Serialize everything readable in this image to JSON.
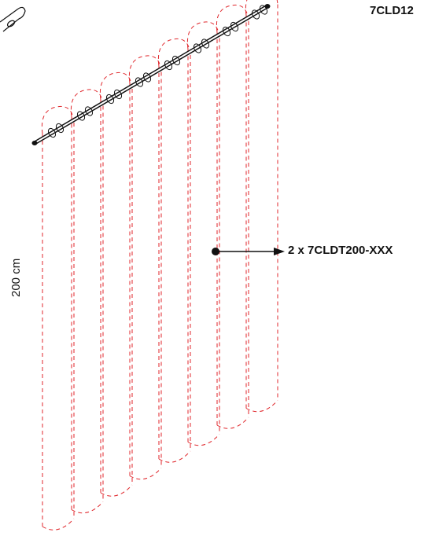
{
  "labels": {
    "top_code": "7CLD12",
    "panel_callout": "2 x 7CLDT200-XXX",
    "height_dimension": "200 cm"
  },
  "colors": {
    "curtain_line": "#e0262b",
    "rod": "#111111",
    "arrow": "#111111"
  }
}
